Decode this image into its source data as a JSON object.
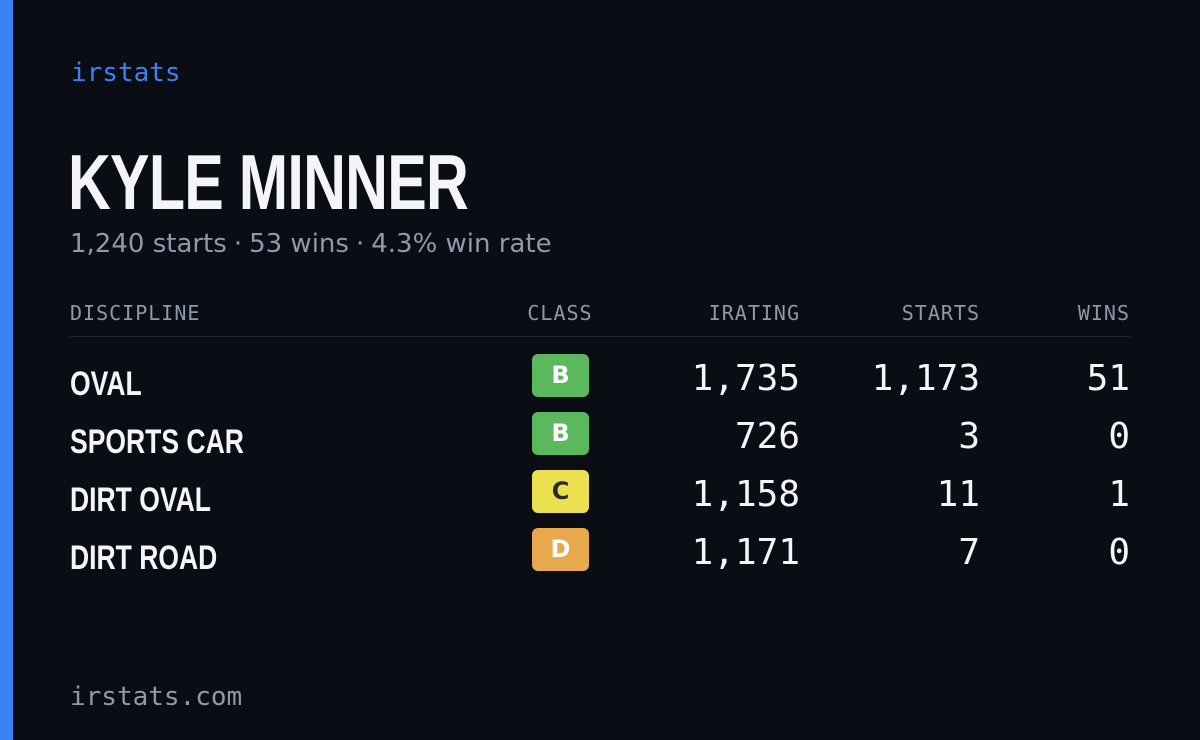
{
  "brand": "irstats",
  "player": {
    "name": "KYLE MINNER",
    "starts_text": "1,240 starts",
    "wins_text": "53 wins",
    "win_rate_text": "4.3% win rate",
    "separator": "·"
  },
  "table": {
    "headers": {
      "discipline": "DISCIPLINE",
      "class": "CLASS",
      "irating": "IRATING",
      "starts": "STARTS",
      "wins": "WINS"
    },
    "rows": [
      {
        "discipline": "OVAL",
        "class": "B",
        "irating": "1,735",
        "starts": "1,173",
        "wins": "51"
      },
      {
        "discipline": "SPORTS CAR",
        "class": "B",
        "irating": "726",
        "starts": "3",
        "wins": "0"
      },
      {
        "discipline": "DIRT OVAL",
        "class": "C",
        "irating": "1,158",
        "starts": "11",
        "wins": "1"
      },
      {
        "discipline": "DIRT ROAD",
        "class": "D",
        "irating": "1,171",
        "starts": "7",
        "wins": "0"
      }
    ]
  },
  "footer": {
    "url": "irstats.com"
  },
  "colors": {
    "accent": "#3b82f6",
    "background": "#0a0d14",
    "class_b": "#5cb85c",
    "class_c": "#ebe04f",
    "class_d": "#e8a84c"
  }
}
